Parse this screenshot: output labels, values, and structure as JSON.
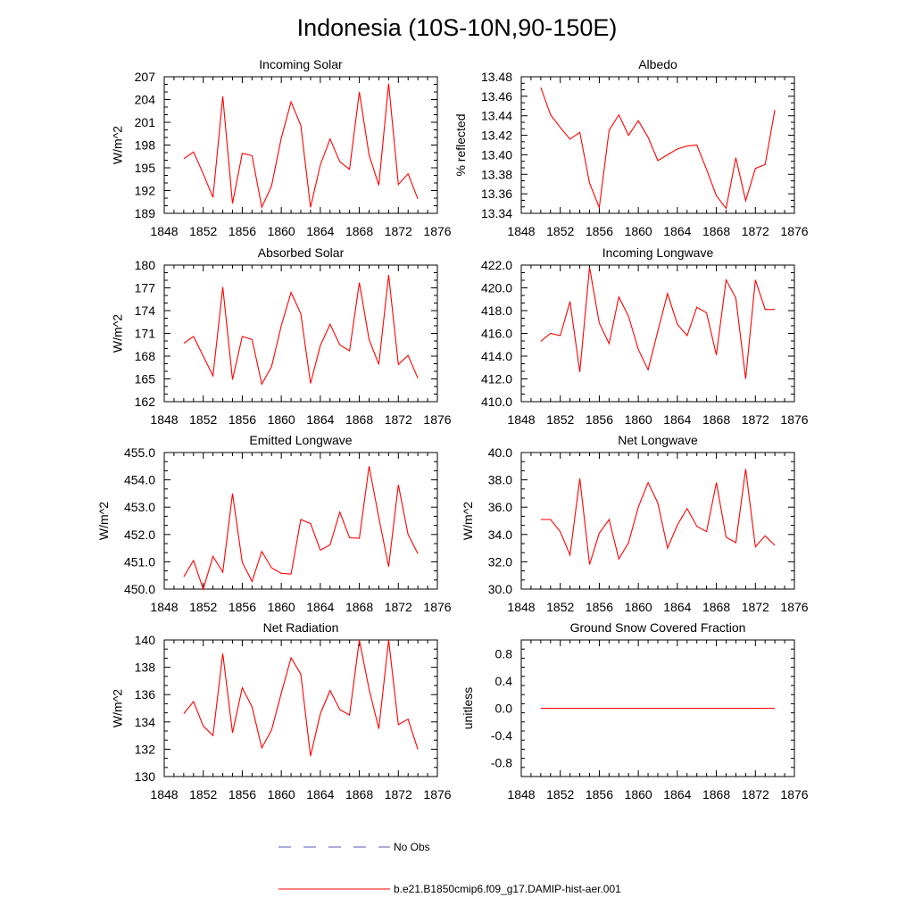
{
  "figure": {
    "title": "Indonesia (10S-10N,90-150E)",
    "legend": [
      {
        "label": "No Obs",
        "color": "#5a5ab4",
        "style": "dashed"
      },
      {
        "label": "b.e21.B1850cmip6.f09_g17.DAMIP-hist-aer.001",
        "color": "#ff0000",
        "style": "solid"
      }
    ]
  },
  "chart_data": [
    {
      "type": "line",
      "title": "Incoming Solar",
      "ylabel": "W/m^2",
      "xlim": [
        1848,
        1876
      ],
      "ylim": [
        189,
        207
      ],
      "xticks": [
        "1848",
        "1852",
        "1856",
        "1860",
        "1864",
        "1868",
        "1872",
        "1876"
      ],
      "yticks": [
        "189",
        "192",
        "195",
        "198",
        "201",
        "204",
        "207"
      ],
      "series": [
        {
          "color": "#ff0000",
          "x": [
            1850,
            1851,
            1852,
            1853,
            1854,
            1855,
            1856,
            1857,
            1858,
            1859,
            1860,
            1861,
            1862,
            1863,
            1864,
            1865,
            1866,
            1867,
            1868,
            1869,
            1870,
            1871,
            1872,
            1873,
            1874
          ],
          "y": [
            196.2,
            197.1,
            194.2,
            191.1,
            204.4,
            190.3,
            196.9,
            196.6,
            189.8,
            192.6,
            198.9,
            203.7,
            200.6,
            189.8,
            195.4,
            198.8,
            195.8,
            194.8,
            205.0,
            196.7,
            192.7,
            206.1,
            192.8,
            194.2,
            190.9
          ]
        }
      ]
    },
    {
      "type": "line",
      "title": "Albedo",
      "ylabel": "% reflected",
      "xlim": [
        1848,
        1876
      ],
      "ylim": [
        13.34,
        13.48
      ],
      "xticks": [
        "1848",
        "1852",
        "1856",
        "1860",
        "1864",
        "1868",
        "1872",
        "1876"
      ],
      "yticks": [
        "13.34",
        "13.36",
        "13.38",
        "13.40",
        "13.42",
        "13.44",
        "13.46",
        "13.48"
      ],
      "series": [
        {
          "color": "#ff0000",
          "x": [
            1850,
            1851,
            1852,
            1853,
            1854,
            1855,
            1856,
            1857,
            1858,
            1859,
            1860,
            1861,
            1862,
            1863,
            1864,
            1865,
            1866,
            1867,
            1868,
            1869,
            1870,
            1871,
            1872,
            1873,
            1874
          ],
          "y": [
            13.469,
            13.441,
            13.428,
            13.416,
            13.423,
            13.371,
            13.346,
            13.425,
            13.441,
            13.42,
            13.435,
            13.418,
            13.394,
            13.4,
            13.406,
            13.409,
            13.41,
            13.385,
            13.358,
            13.345,
            13.397,
            13.353,
            13.386,
            13.39,
            13.446
          ]
        }
      ]
    },
    {
      "type": "line",
      "title": "Absorbed Solar",
      "ylabel": "W/m^2",
      "xlim": [
        1848,
        1876
      ],
      "ylim": [
        162,
        180
      ],
      "xticks": [
        "1848",
        "1852",
        "1856",
        "1860",
        "1864",
        "1868",
        "1872",
        "1876"
      ],
      "yticks": [
        "162",
        "165",
        "168",
        "171",
        "174",
        "177",
        "180"
      ],
      "series": [
        {
          "color": "#ff0000",
          "x": [
            1850,
            1851,
            1852,
            1853,
            1854,
            1855,
            1856,
            1857,
            1858,
            1859,
            1860,
            1861,
            1862,
            1863,
            1864,
            1865,
            1866,
            1867,
            1868,
            1869,
            1870,
            1871,
            1872,
            1873,
            1874
          ],
          "y": [
            169.7,
            170.6,
            168.0,
            165.4,
            177.1,
            164.9,
            170.6,
            170.2,
            164.3,
            166.6,
            172.0,
            176.4,
            173.6,
            164.4,
            169.4,
            172.2,
            169.5,
            168.7,
            177.7,
            170.2,
            166.9,
            178.7,
            166.9,
            168.1,
            165.1
          ]
        }
      ]
    },
    {
      "type": "line",
      "title": "Incoming Longwave",
      "ylabel": "",
      "xlim": [
        1848,
        1876
      ],
      "ylim": [
        410.0,
        422.0
      ],
      "xticks": [
        "1848",
        "1852",
        "1856",
        "1860",
        "1864",
        "1868",
        "1872",
        "1876"
      ],
      "yticks": [
        "410.0",
        "412.0",
        "414.0",
        "416.0",
        "418.0",
        "420.0",
        "422.0"
      ],
      "series": [
        {
          "color": "#ff0000",
          "x": [
            1850,
            1851,
            1852,
            1853,
            1854,
            1855,
            1856,
            1857,
            1858,
            1859,
            1860,
            1861,
            1862,
            1863,
            1864,
            1865,
            1866,
            1867,
            1868,
            1869,
            1870,
            1871,
            1872,
            1873,
            1874
          ],
          "y": [
            415.3,
            416.0,
            415.8,
            418.8,
            412.6,
            421.8,
            416.9,
            415.1,
            419.2,
            417.5,
            414.6,
            412.8,
            416.2,
            419.5,
            416.8,
            415.8,
            418.3,
            417.8,
            414.1,
            420.7,
            419.1,
            412.0,
            420.7,
            418.1,
            418.1
          ]
        }
      ]
    },
    {
      "type": "line",
      "title": "Emitted Longwave",
      "ylabel": "W/m^2",
      "xlim": [
        1848,
        1876
      ],
      "ylim": [
        450.0,
        455.0
      ],
      "xticks": [
        "1848",
        "1852",
        "1856",
        "1860",
        "1864",
        "1868",
        "1872",
        "1876"
      ],
      "yticks": [
        "450.0",
        "451.0",
        "452.0",
        "453.0",
        "454.0",
        "455.0"
      ],
      "series": [
        {
          "color": "#ff0000",
          "x": [
            1850,
            1851,
            1852,
            1853,
            1854,
            1855,
            1856,
            1857,
            1858,
            1859,
            1860,
            1861,
            1862,
            1863,
            1864,
            1865,
            1866,
            1867,
            1868,
            1869,
            1870,
            1871,
            1872,
            1873,
            1874
          ],
          "y": [
            450.45,
            451.05,
            450.0,
            451.2,
            450.62,
            453.5,
            450.98,
            450.28,
            451.38,
            450.78,
            450.58,
            450.55,
            452.55,
            452.4,
            451.42,
            451.62,
            452.82,
            451.88,
            451.86,
            454.5,
            452.62,
            450.82,
            453.82,
            452.0,
            451.3
          ]
        }
      ]
    },
    {
      "type": "line",
      "title": "Net Longwave",
      "ylabel": "W/m^2",
      "xlim": [
        1848,
        1876
      ],
      "ylim": [
        30.0,
        40.0
      ],
      "xticks": [
        "1848",
        "1852",
        "1856",
        "1860",
        "1864",
        "1868",
        "1872",
        "1876"
      ],
      "yticks": [
        "30.0",
        "32.0",
        "34.0",
        "36.0",
        "38.0",
        "40.0"
      ],
      "series": [
        {
          "color": "#ff0000",
          "x": [
            1850,
            1851,
            1852,
            1853,
            1854,
            1855,
            1856,
            1857,
            1858,
            1859,
            1860,
            1861,
            1862,
            1863,
            1864,
            1865,
            1866,
            1867,
            1868,
            1869,
            1870,
            1871,
            1872,
            1873,
            1874
          ],
          "y": [
            35.1,
            35.1,
            34.2,
            32.5,
            38.1,
            31.8,
            34.1,
            35.1,
            32.2,
            33.4,
            36.0,
            37.8,
            36.3,
            33.0,
            34.7,
            35.9,
            34.6,
            34.2,
            37.8,
            33.8,
            33.4,
            38.8,
            33.1,
            33.9,
            33.2
          ]
        }
      ]
    },
    {
      "type": "line",
      "title": "Net Radiation",
      "ylabel": "W/m^2",
      "xlim": [
        1848,
        1876
      ],
      "ylim": [
        130,
        140
      ],
      "xticks": [
        "1848",
        "1852",
        "1856",
        "1860",
        "1864",
        "1868",
        "1872",
        "1876"
      ],
      "yticks": [
        "130",
        "132",
        "134",
        "136",
        "138",
        "140"
      ],
      "series": [
        {
          "color": "#ff0000",
          "x": [
            1850,
            1851,
            1852,
            1853,
            1854,
            1855,
            1856,
            1857,
            1858,
            1859,
            1860,
            1861,
            1862,
            1863,
            1864,
            1865,
            1866,
            1867,
            1868,
            1869,
            1870,
            1871,
            1872,
            1873,
            1874
          ],
          "y": [
            134.6,
            135.5,
            133.7,
            133.0,
            139.0,
            133.2,
            136.5,
            135.1,
            132.1,
            133.4,
            136.1,
            138.7,
            137.5,
            131.5,
            134.6,
            136.3,
            134.9,
            134.5,
            140.0,
            136.4,
            133.5,
            140.0,
            133.8,
            134.2,
            132.0
          ]
        }
      ]
    },
    {
      "type": "line",
      "title": "Ground Snow Covered Fraction",
      "ylabel": "unitless",
      "xlim": [
        1848,
        1876
      ],
      "ylim": [
        -1.0,
        1.0
      ],
      "xticks": [
        "1848",
        "1852",
        "1856",
        "1860",
        "1864",
        "1868",
        "1872",
        "1876"
      ],
      "yticks": [
        "-0.8",
        "-0.4",
        "0.0",
        "0.4",
        "0.8"
      ],
      "series": [
        {
          "color": "#ff0000",
          "x": [
            1850,
            1874
          ],
          "y": [
            0.0,
            0.0
          ]
        }
      ]
    }
  ]
}
